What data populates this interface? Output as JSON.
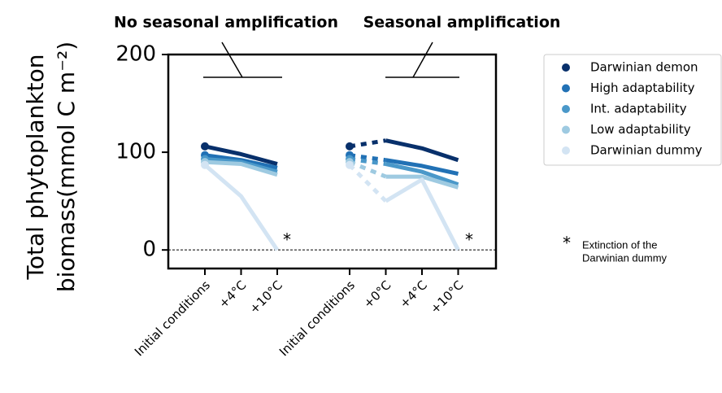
{
  "chart_data": {
    "type": "line",
    "annotations": [
      "No seasonal amplification",
      "Seasonal amplification"
    ],
    "ylabel": [
      "Total phytoplankton",
      "biomass(mmol C m⁻²)"
    ],
    "categories": [
      "Initial conditions",
      "+4°C",
      "+10°C",
      null,
      "Initial conditions",
      "+0°C",
      "+4°C",
      "+10°C"
    ],
    "series": [
      {
        "name": "Darwinian demon",
        "color": "#08306b",
        "values": [
          106,
          98,
          88,
          null,
          106,
          112,
          104,
          92
        ]
      },
      {
        "name": "High adaptability",
        "color": "#2171b5",
        "values": [
          97,
          92,
          84,
          null,
          97,
          92,
          86,
          78
        ]
      },
      {
        "name": "Int. adaptability",
        "color": "#4a98c9",
        "values": [
          93,
          90,
          80,
          null,
          93,
          88,
          80,
          67
        ]
      },
      {
        "name": "Low adaptability",
        "color": "#9ecae1",
        "values": [
          90,
          88,
          77,
          null,
          90,
          75,
          75,
          64
        ]
      },
      {
        "name": "Darwinian dummy",
        "color": "#d3e4f3",
        "values": [
          87,
          55,
          0,
          null,
          87,
          50,
          72,
          0
        ]
      }
    ],
    "markers_at": [
      0,
      4
    ],
    "dashed_segments": [
      [
        4,
        5
      ]
    ],
    "ylim": [
      -19,
      200
    ],
    "yticks": [
      0,
      100,
      200
    ],
    "zero_line": true,
    "asterisk": "*",
    "footnote": [
      "Extinction of the",
      "Darwinian dummy"
    ]
  }
}
